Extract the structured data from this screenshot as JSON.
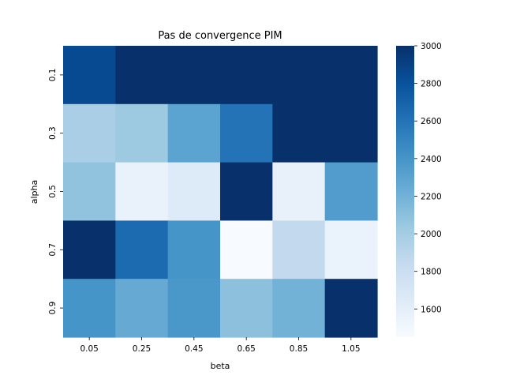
{
  "chart_data": {
    "type": "heatmap",
    "title": "Pas de convergence PIM",
    "xlabel": "beta",
    "ylabel": "alpha",
    "x_categories": [
      "0.05",
      "0.25",
      "0.45",
      "0.65",
      "0.85",
      "1.05"
    ],
    "y_categories": [
      "0.1",
      "0.3",
      "0.5",
      "0.7",
      "0.9"
    ],
    "values": [
      [
        2850,
        3000,
        3000,
        3000,
        3000,
        3000
      ],
      [
        1980,
        2030,
        2300,
        2600,
        3000,
        3000
      ],
      [
        2080,
        1560,
        1650,
        3000,
        1570,
        2350
      ],
      [
        3000,
        2650,
        2400,
        1450,
        1850,
        1550
      ],
      [
        2400,
        2250,
        2380,
        2100,
        2200,
        3000
      ]
    ],
    "colorbar": {
      "min": 1450,
      "max": 3000,
      "ticks": [
        1600,
        1800,
        2000,
        2200,
        2400,
        2600,
        2800,
        3000
      ]
    },
    "colormap": "Blues",
    "colors": {
      "low": "#f7fbff",
      "high": "#08306b"
    },
    "grid": false,
    "legend": "colorbar-right"
  }
}
